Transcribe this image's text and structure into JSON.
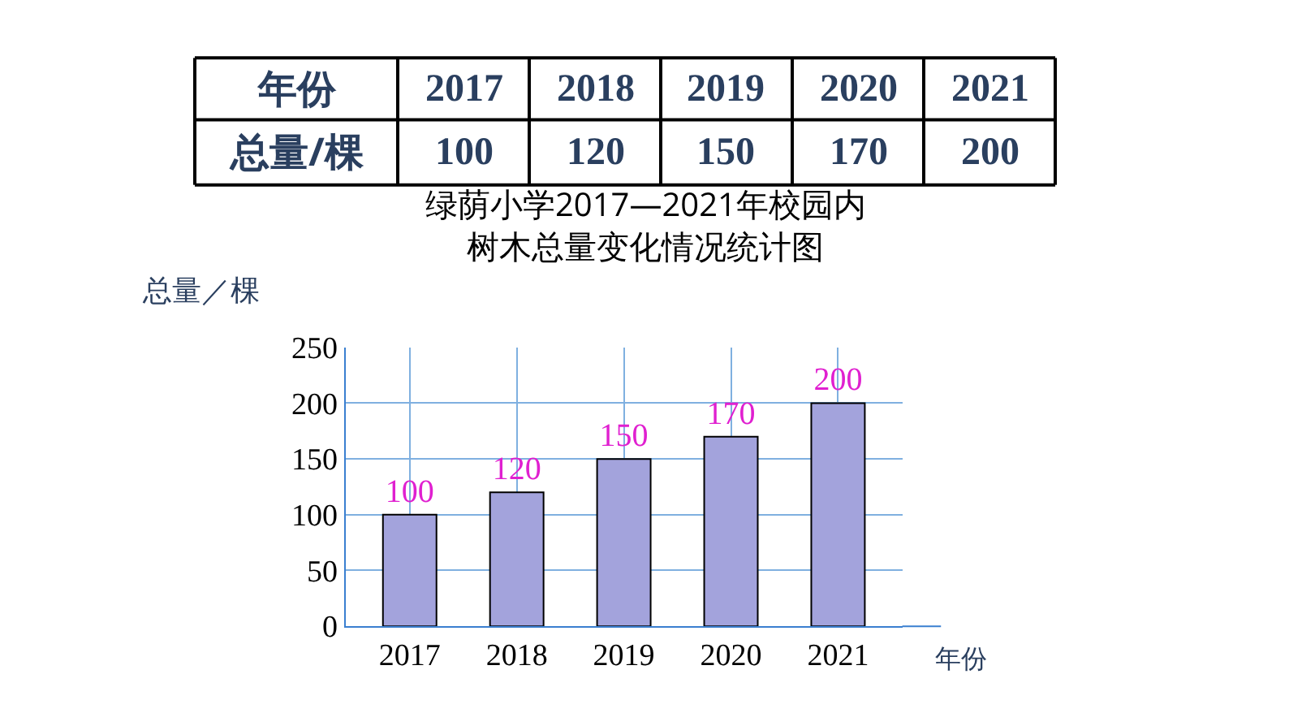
{
  "chart_data": {
    "type": "bar",
    "title": "绿荫小学2017—2021年校园内",
    "subtitle": "树木总量变化情况统计图",
    "xlabel": "年份",
    "ylabel": "总量／棵",
    "annotations": [
      "年份",
      "总量/棵",
      "100",
      "120",
      "150",
      "170",
      "200"
    ],
    "categories": [
      "2017",
      "2018",
      "2019",
      "2020",
      "2021"
    ],
    "values": [
      100,
      120,
      150,
      170,
      200
    ],
    "color": "#a3a3dc",
    "ylim": [
      0,
      250
    ],
    "yticks": [
      0,
      50,
      100,
      150,
      200,
      250
    ],
    "grid": true,
    "data_labels": true,
    "legend": false
  }
}
